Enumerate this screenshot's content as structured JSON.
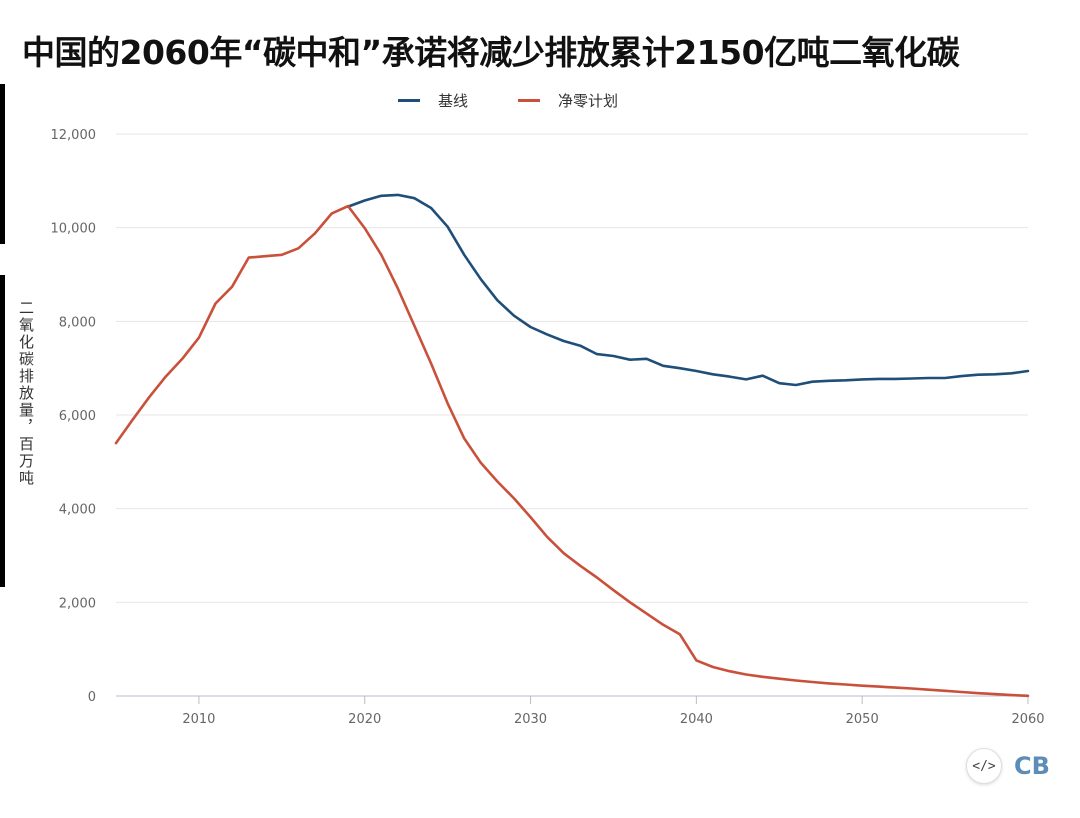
{
  "title": "中国的2060年“碳中和”承诺将减少排放累计2150亿吨二氧化碳",
  "chart_data": {
    "type": "line",
    "title": "中国的2060年“碳中和”承诺将减少排放累计2150亿吨二氧化碳",
    "ylabel": "二氧化碳排放量，百万吨",
    "xlabel": "",
    "xlim": [
      2005,
      2060
    ],
    "ylim": [
      0,
      12000
    ],
    "xticks": [
      "2010",
      "2020",
      "2030",
      "2040",
      "2050",
      "2060"
    ],
    "yticks": [
      "0",
      "2,000",
      "4,000",
      "6,000",
      "8,000",
      "10,000",
      "12,000"
    ],
    "grid": true,
    "legend_position": "top-center",
    "series": [
      {
        "name": "基线",
        "color": "#1f4e79",
        "x": [
          2019,
          2020,
          2021,
          2022,
          2023,
          2024,
          2025,
          2026,
          2027,
          2028,
          2029,
          2030,
          2031,
          2032,
          2033,
          2034,
          2035,
          2036,
          2037,
          2038,
          2039,
          2040,
          2041,
          2042,
          2043,
          2044,
          2045,
          2046,
          2047,
          2048,
          2049,
          2050,
          2051,
          2052,
          2053,
          2054,
          2055,
          2056,
          2057,
          2058,
          2059,
          2060
        ],
        "values": [
          10450,
          10580,
          10680,
          10700,
          10630,
          10420,
          10020,
          9420,
          8900,
          8450,
          8120,
          7880,
          7720,
          7580,
          7480,
          7300,
          7260,
          7180,
          7200,
          7050,
          7000,
          6940,
          6870,
          6820,
          6760,
          6840,
          6680,
          6640,
          6710,
          6730,
          6740,
          6760,
          6770,
          6770,
          6780,
          6790,
          6790,
          6830,
          6860,
          6870,
          6890,
          6940
        ]
      },
      {
        "name": "净零计划",
        "color": "#c9503a",
        "x": [
          2005,
          2006,
          2007,
          2008,
          2009,
          2010,
          2011,
          2012,
          2013,
          2014,
          2015,
          2016,
          2017,
          2018,
          2019,
          2020,
          2021,
          2022,
          2023,
          2024,
          2025,
          2026,
          2027,
          2028,
          2029,
          2030,
          2031,
          2032,
          2033,
          2034,
          2035,
          2036,
          2037,
          2038,
          2039,
          2040,
          2041,
          2042,
          2043,
          2044,
          2045,
          2046,
          2047,
          2048,
          2049,
          2050,
          2051,
          2052,
          2053,
          2054,
          2055,
          2056,
          2057,
          2058,
          2059,
          2060
        ],
        "values": [
          5400,
          5900,
          6380,
          6820,
          7200,
          7650,
          8380,
          8740,
          9360,
          9390,
          9420,
          9560,
          9880,
          10300,
          10460,
          9990,
          9420,
          8700,
          7900,
          7100,
          6250,
          5500,
          4980,
          4580,
          4220,
          3820,
          3400,
          3050,
          2780,
          2530,
          2260,
          2000,
          1760,
          1520,
          1320,
          760,
          620,
          530,
          460,
          410,
          370,
          330,
          300,
          270,
          245,
          220,
          200,
          180,
          160,
          135,
          110,
          85,
          60,
          40,
          20,
          5
        ]
      }
    ]
  },
  "logo": {
    "code_glyph": "</>",
    "text": "CB"
  }
}
